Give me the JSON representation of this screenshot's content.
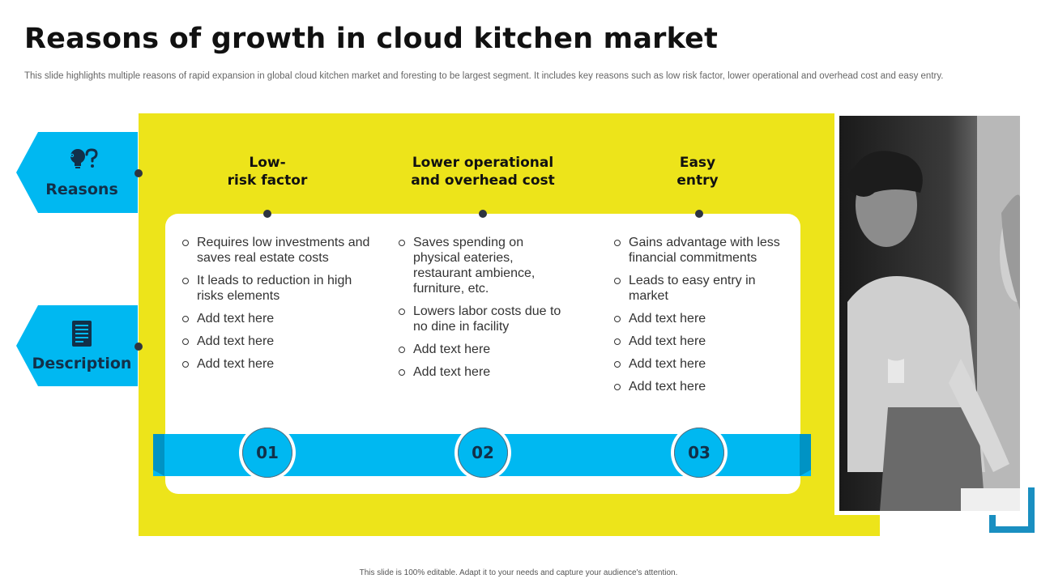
{
  "title": "Reasons of growth in cloud kitchen market",
  "subtitle": "This slide highlights multiple reasons of rapid expansion in global cloud kitchen market and foresting to be largest segment. It includes key reasons such as low risk factor, lower operational and overhead cost and easy entry.",
  "tags": {
    "reasons": "Reasons",
    "description": "Description"
  },
  "columns": [
    {
      "heading_line1": "Low-",
      "heading_line2": "risk factor",
      "number": "01",
      "bullets": [
        "Requires low investments and saves real estate costs",
        "It leads to reduction in high risks elements",
        "Add text here",
        "Add text here",
        "Add text here"
      ]
    },
    {
      "heading_line1": "Lower operational",
      "heading_line2": "and overhead cost",
      "number": "02",
      "bullets": [
        "Saves spending on physical eateries, restaurant ambience, furniture, etc.",
        "Lowers labor costs due to no dine in facility",
        "Add text here",
        "Add text here"
      ]
    },
    {
      "heading_line1": "Easy",
      "heading_line2": "entry",
      "number": "03",
      "bullets": [
        "Gains advantage with less financial commitments",
        "Leads to easy entry in market",
        "Add text here",
        "Add text here",
        "Add text here",
        "Add text here"
      ]
    }
  ],
  "footer": "This slide is 100% editable. Adapt it to your needs and capture your audience's attention.",
  "colors": {
    "accent_blue": "#00b8f1",
    "accent_yellow": "#ede41a",
    "dark_navy": "#123049"
  },
  "icons": {
    "reasons": "lightbulb-question-icon",
    "description": "document-icon"
  }
}
